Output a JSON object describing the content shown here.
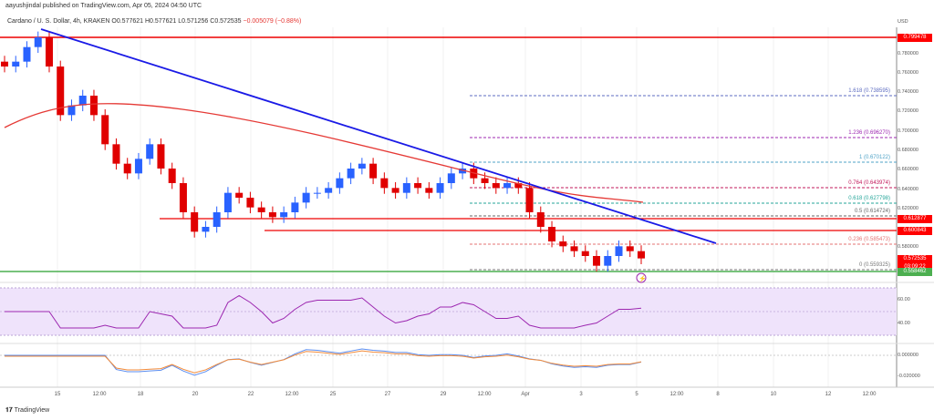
{
  "header": {
    "published": "aayushjindal published on TradingView.com, Apr 05, 2024 04:50 UTC",
    "symbol": "Cardano / U. S. Dollar, 4h, KRAKEN",
    "open": "O0.577621",
    "high": "H0.577621",
    "low": "L0.571256",
    "close": "C0.572535",
    "change": "−0.005079 (−0.88%)"
  },
  "axis": {
    "currency": "USD",
    "ticks": [
      "0.780000",
      "0.760000",
      "0.740000",
      "0.720000",
      "0.700000",
      "0.680000",
      "0.660000",
      "0.640000",
      "0.620000",
      "0.580000"
    ],
    "rsi_ticks": [
      "60.00",
      "40.00"
    ],
    "macd_ticks": [
      "0.000000",
      "-0.020000"
    ]
  },
  "price_labels": {
    "top": "0.799478",
    "r1": "0.612877",
    "r2": "0.600843",
    "last": "0.572535",
    "countdown": "03:09:22",
    "support": "0.558462"
  },
  "fib": [
    {
      "label": "1.618 (0.738595)",
      "color": "#5c6bc0"
    },
    {
      "label": "1.236 (0.696270)",
      "color": "#9c27b0"
    },
    {
      "label": "1 (0.670122)",
      "color": "#4fa3c7"
    },
    {
      "label": "0.764 (0.643974)",
      "color": "#c2185b"
    },
    {
      "label": "0.618 (0.627798)",
      "color": "#26a69a"
    },
    {
      "label": "0.5 (0.614724)",
      "color": "#666666"
    },
    {
      "label": "0.236 (0.585473)",
      "color": "#e57373"
    },
    {
      "label": "0 (0.559325)",
      "color": "#777777"
    }
  ],
  "x_labels": [
    "15",
    "12:00",
    "18",
    "20",
    "22",
    "12:00",
    "25",
    "27",
    "29",
    "12:00",
    "Apr",
    "3",
    "5",
    "12:00",
    "8",
    "10",
    "12",
    "12:00"
  ],
  "colors": {
    "up": "#2962ff",
    "down": "#e00000",
    "trend": "#1a1ae6",
    "ema": "#e53935",
    "rsi": "#9c27b0",
    "macd": "#5b8def",
    "signal": "#f28b3a",
    "support": "#4caf50"
  },
  "closes": [
    0.77,
    0.775,
    0.79,
    0.8,
    0.77,
    0.72,
    0.73,
    0.74,
    0.72,
    0.69,
    0.67,
    0.66,
    0.675,
    0.69,
    0.665,
    0.65,
    0.62,
    0.6,
    0.605,
    0.62,
    0.64,
    0.635,
    0.625,
    0.62,
    0.615,
    0.62,
    0.63,
    0.64,
    0.64,
    0.645,
    0.655,
    0.665,
    0.67,
    0.655,
    0.645,
    0.64,
    0.65,
    0.645,
    0.64,
    0.65,
    0.66,
    0.665,
    0.655,
    0.65,
    0.645,
    0.65,
    0.645,
    0.62,
    0.605,
    0.59,
    0.585,
    0.58,
    0.575,
    0.565,
    0.575,
    0.585,
    0.58,
    0.572535
  ],
  "footer": {
    "brand": "TradingView"
  }
}
